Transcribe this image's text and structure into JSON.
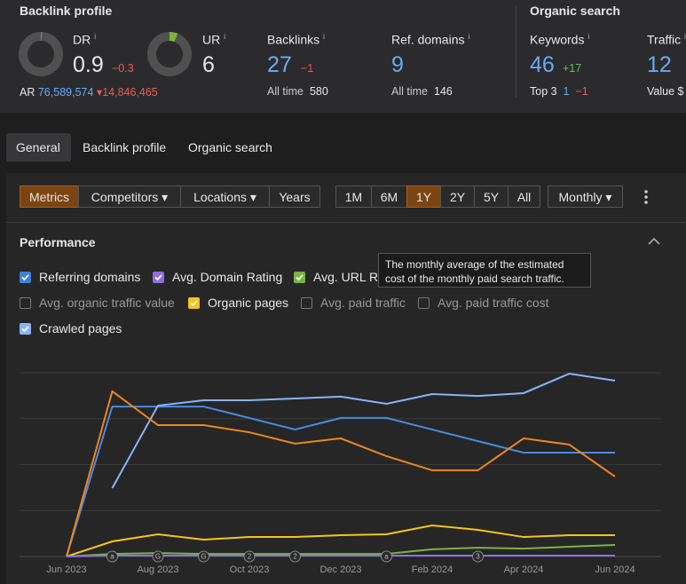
{
  "header": {
    "backlink_title": "Backlink profile",
    "info_icon": "i",
    "dr": {
      "label": "DR",
      "value": 0.9,
      "change": "−0.3"
    },
    "ur": {
      "label": "UR",
      "value": 6
    },
    "backlinks": {
      "label": "Backlinks",
      "value": 27,
      "change": "−1",
      "sub_label": "All time",
      "sub_value": 580
    },
    "ref_domains": {
      "label": "Ref. domains",
      "value": 9,
      "sub_label": "All time",
      "sub_value": 146
    },
    "ar": {
      "label": "AR",
      "value": "76,589,574",
      "change": "14,846,465"
    },
    "organic_title": "Organic search",
    "keywords": {
      "label": "Keywords",
      "value": 46,
      "change": "+17",
      "sub_label": "Top 3",
      "sub_value": 1,
      "sub_change": "−1"
    },
    "traffic": {
      "label": "Traffic",
      "value": 12,
      "sub_label": "Value",
      "sub_value": "$"
    }
  },
  "tabs": [
    "General",
    "Backlink profile",
    "Organic search"
  ],
  "toolbar": {
    "filters": [
      "Metrics",
      "Competitors",
      "Locations",
      "Years"
    ],
    "ranges": [
      "1M",
      "6M",
      "1Y",
      "2Y",
      "5Y",
      "All"
    ],
    "interval": "Monthly"
  },
  "panel_title": "Performance",
  "legend": [
    {
      "label": "Referring domains",
      "checked": true,
      "color": "#3f7fdc"
    },
    {
      "label": "Avg. Domain Rating",
      "checked": true,
      "color": "#8a6fe0"
    },
    {
      "label": "Avg. URL Rating",
      "checked": true,
      "color": "#7cb342"
    },
    {
      "label": "Avg. organic traffic value",
      "checked": false,
      "color": "#777"
    },
    {
      "label": "Organic pages",
      "checked": true,
      "color": "#f5c518"
    },
    {
      "label": "Avg. paid traffic",
      "checked": false,
      "color": "#777"
    },
    {
      "label": "Avg. paid traffic cost",
      "checked": false,
      "color": "#777"
    },
    {
      "label": "Crawled pages",
      "checked": true,
      "color": "#8ab4f8"
    }
  ],
  "tooltip": [
    "The monthly average of the estimated",
    "cost of the monthly paid search traffic."
  ],
  "chart_data": {
    "type": "line",
    "categories": [
      "Jun 2023",
      null,
      "Aug 2023",
      null,
      "Oct 2023",
      null,
      "Dec 2023",
      null,
      "Feb 2024",
      null,
      "Apr 2024",
      null,
      "Jun 2024"
    ],
    "ylim": [
      0,
      100
    ],
    "series": [
      {
        "color": "#4a8be0",
        "values": [
          0,
          81.6,
          81.6,
          81.6,
          75.4,
          69.1,
          75.4,
          75.4,
          69.1,
          62.8,
          56.5,
          56.5,
          56.5
        ]
      },
      {
        "color": "#8ab4f8",
        "values": [
          null,
          37.2,
          82.1,
          85.0,
          85.0,
          86.0,
          87.0,
          83.1,
          88.4,
          87.4,
          88.9,
          99.5,
          95.7
        ]
      },
      {
        "color": "#f0861f",
        "values": [
          0,
          89.9,
          71.5,
          71.5,
          67.6,
          61.4,
          64.3,
          54.6,
          46.9,
          46.9,
          64.3,
          60.9,
          43.5
        ]
      },
      {
        "color": "#f5c518",
        "values": [
          0,
          8.2,
          12.1,
          9.2,
          10.6,
          10.6,
          11.6,
          12.1,
          16.9,
          14.5,
          10.6,
          11.6,
          11.6
        ]
      },
      {
        "color": "#7cb342",
        "values": [
          0,
          1.4,
          1.9,
          1.4,
          1.4,
          1.4,
          1.4,
          1.4,
          3.9,
          4.8,
          4.3,
          5.3,
          6.3
        ]
      },
      {
        "color": "#8a6fe0",
        "values": [
          0,
          0.5,
          0.5,
          0.5,
          0.5,
          0.5,
          0.5,
          0.5,
          0.5,
          0.5,
          0.5,
          0.5,
          0.5
        ]
      }
    ],
    "annotations": [
      {
        "index": 1,
        "label": "a"
      },
      {
        "index": 2,
        "label": "G"
      },
      {
        "index": 3,
        "label": "G"
      },
      {
        "index": 4,
        "label": "2"
      },
      {
        "index": 5,
        "label": "2"
      },
      {
        "index": 7,
        "label": "a"
      },
      {
        "index": 9,
        "label": "3"
      }
    ]
  }
}
